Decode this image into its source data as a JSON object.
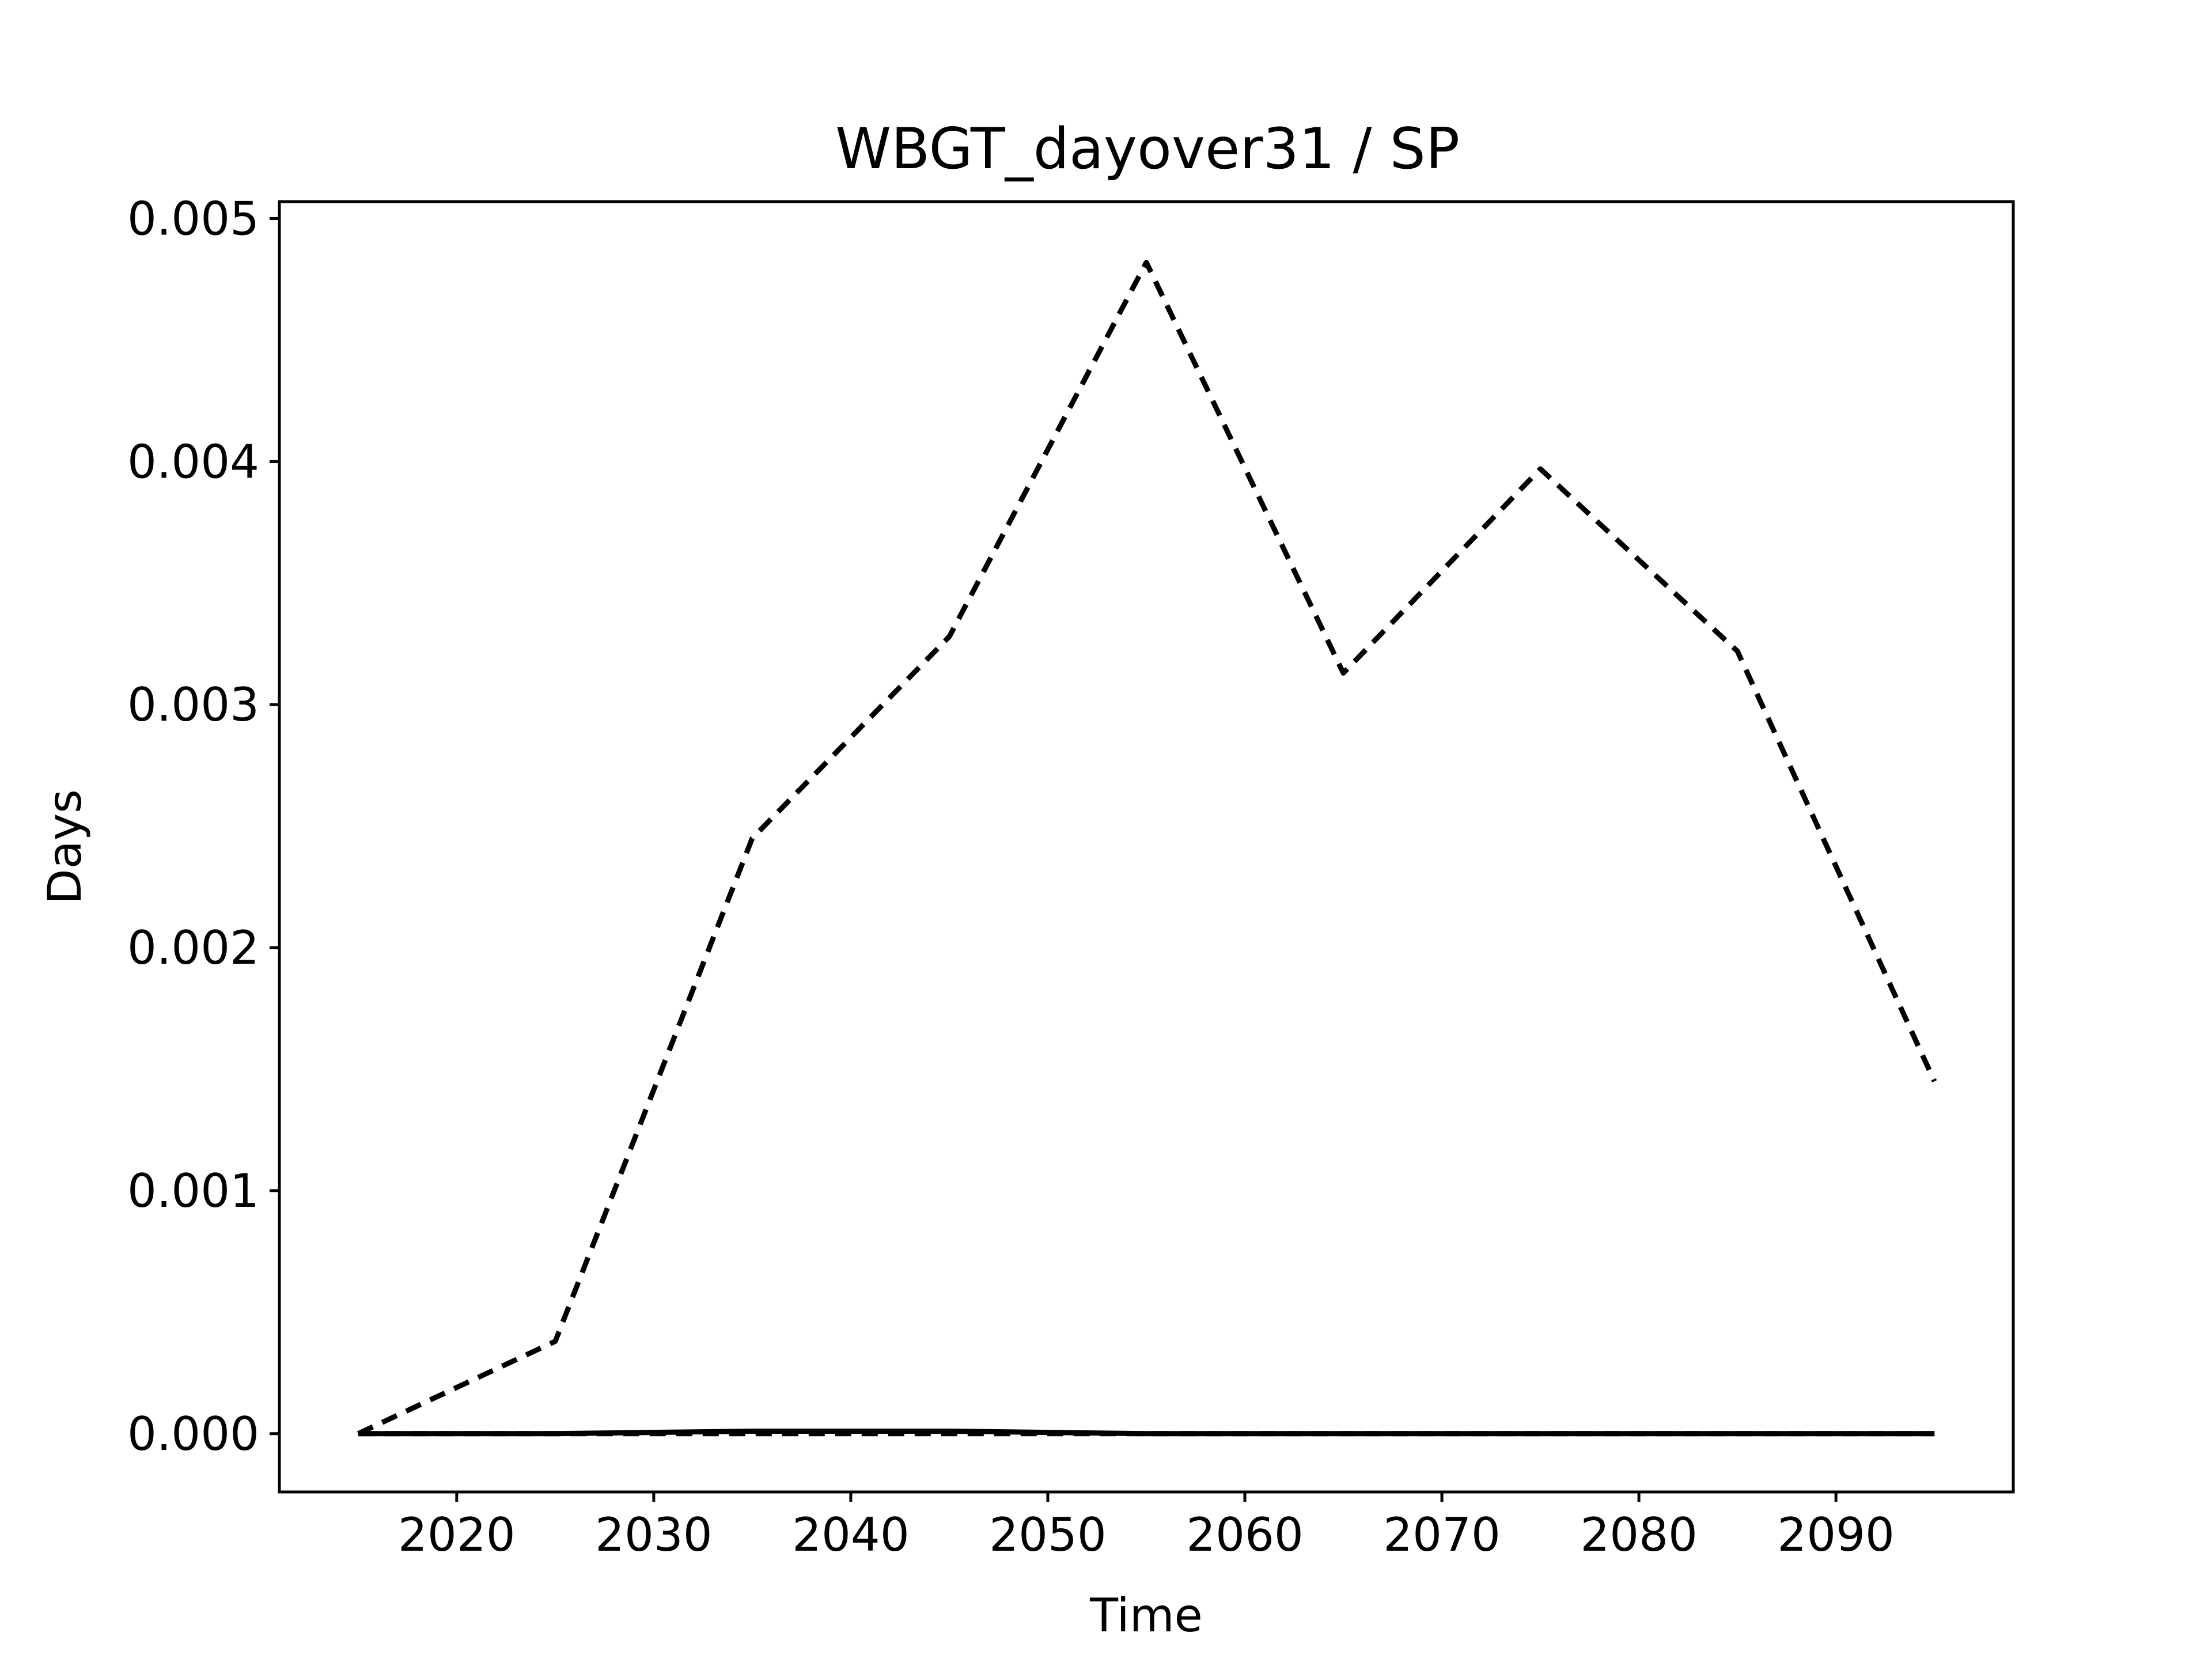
{
  "chart_data": {
    "type": "line",
    "title": "WBGT_dayover31 / SP",
    "xlabel": "Time",
    "ylabel": "Days",
    "xlim": [
      2011,
      2099
    ],
    "ylim": [
      -0.00024,
      0.00507
    ],
    "grid": false,
    "x_ticks": [
      2020,
      2030,
      2040,
      2050,
      2060,
      2070,
      2080,
      2090
    ],
    "y_ticks": [
      0.0,
      0.001,
      0.002,
      0.003,
      0.004,
      0.005
    ],
    "y_tick_labels": [
      "0.000",
      "0.001",
      "0.002",
      "0.003",
      "0.004",
      "0.005"
    ],
    "x": [
      2015,
      2025,
      2035,
      2045,
      2055,
      2065,
      2075,
      2085,
      2095
    ],
    "series": [
      {
        "line_style": "dashed",
        "color": "#000000",
        "values": [
          0.0,
          0.00038,
          0.00245,
          0.00328,
          0.00482,
          0.00313,
          0.00397,
          0.00322,
          0.00145
        ]
      },
      {
        "line_style": "dashed",
        "color": "#000000",
        "values": [
          0.0,
          0.0,
          0.0,
          0.0,
          0.0,
          0.0,
          0.0,
          0.0,
          0.0
        ]
      },
      {
        "line_style": "solid",
        "color": "#000000",
        "values": [
          0.0,
          0.0,
          1e-05,
          1e-05,
          0.0,
          0.0,
          0.0,
          0.0,
          0.0
        ]
      }
    ]
  }
}
